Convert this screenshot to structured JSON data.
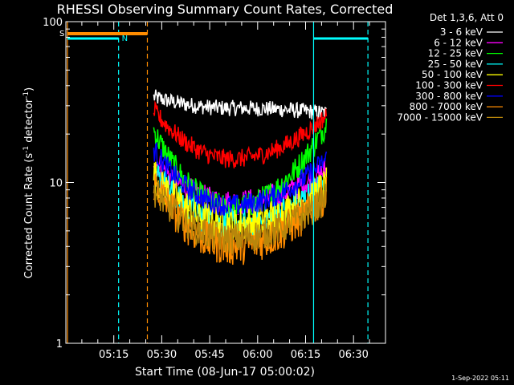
{
  "chart_data": {
    "type": "line",
    "title": "RHESSI Observing Summary Count Rates, Corrected",
    "xlabel": "Start Time (08-Jun-17 05:00:02)",
    "ylabel": "Corrected Count Rate (s",
    "ylabel_sup1": "-1",
    "ylabel_mid": " detector",
    "ylabel_sup2": "-1",
    "ylabel_end": ")",
    "yscale": "log",
    "ylim": [
      1,
      100
    ],
    "xlim_minutes": [
      0,
      100
    ],
    "x_ticks": [
      "05:15",
      "05:30",
      "05:45",
      "06:00",
      "06:15",
      "06:30"
    ],
    "y_ticks": [
      "1",
      "10",
      "100"
    ],
    "legend_header": "Det 1,3,6, Att 0",
    "legend_position": "top-right, outside plot",
    "series": [
      {
        "name": "3 - 6 keV",
        "color": "#ffffff",
        "start": 34,
        "mid": 29,
        "end": 27,
        "dip": 0,
        "noise": 0.05
      },
      {
        "name": "6 - 12 keV",
        "color": "#ff00ff",
        "start": 14,
        "mid": 7.5,
        "end": 12,
        "dip": 0,
        "noise": 0.08
      },
      {
        "name": "12 - 25 keV",
        "color": "#00ff00",
        "start": 21,
        "mid": 7.0,
        "end": 23,
        "dip": 0,
        "noise": 0.08
      },
      {
        "name": "25 - 50 keV",
        "color": "#00ffff",
        "start": 12,
        "mid": 5.5,
        "end": 10,
        "dip": 0,
        "noise": 0.1
      },
      {
        "name": "50 - 100 keV",
        "color": "#ffff00",
        "start": 11,
        "mid": 5.5,
        "end": 9.5,
        "dip": 0,
        "noise": 0.12
      },
      {
        "name": "100 - 300 keV",
        "color": "#ff0000",
        "start": 28,
        "mid": 14,
        "end": 26,
        "dip": 0,
        "noise": 0.06
      },
      {
        "name": "300 - 800 keV",
        "color": "#0000ff",
        "start": 16,
        "mid": 7.2,
        "end": 14,
        "dip": 0,
        "noise": 0.07
      },
      {
        "name": "800 - 7000 keV",
        "color": "#ff8c00",
        "start": 10,
        "mid": 4.0,
        "end": 8.5,
        "dip": 0,
        "noise": 0.12
      },
      {
        "name": "7000 - 15000 keV",
        "color": "#b8860b",
        "start": 9,
        "mid": 4.5,
        "end": 8,
        "dip": 0,
        "noise": 0.1
      }
    ],
    "data_window_minutes": [
      27.5,
      81.5
    ],
    "markers": {
      "saa": {
        "label": "S",
        "x_start": 0.5,
        "x_end": 25.5,
        "color": "#ff8c00"
      },
      "night": [
        {
          "label": "N",
          "x_start": 0.5,
          "x_end": 16.5,
          "color": "#00ffff"
        },
        {
          "label": "",
          "x_start": 77.5,
          "x_end": 94.5,
          "color": "#00ffff"
        }
      ],
      "vlines_solid": [
        {
          "x": 0.5,
          "color": "#ff8c00"
        },
        {
          "x": 77.5,
          "color": "#00ffff"
        }
      ],
      "vlines_dashed": [
        {
          "x": 16.5,
          "color": "#00ffff"
        },
        {
          "x": 25.5,
          "color": "#ff8c00"
        },
        {
          "x": 94.5,
          "color": "#00ffff"
        }
      ]
    }
  },
  "footer": {
    "timestamp": "1-Sep-2022 05:11"
  }
}
